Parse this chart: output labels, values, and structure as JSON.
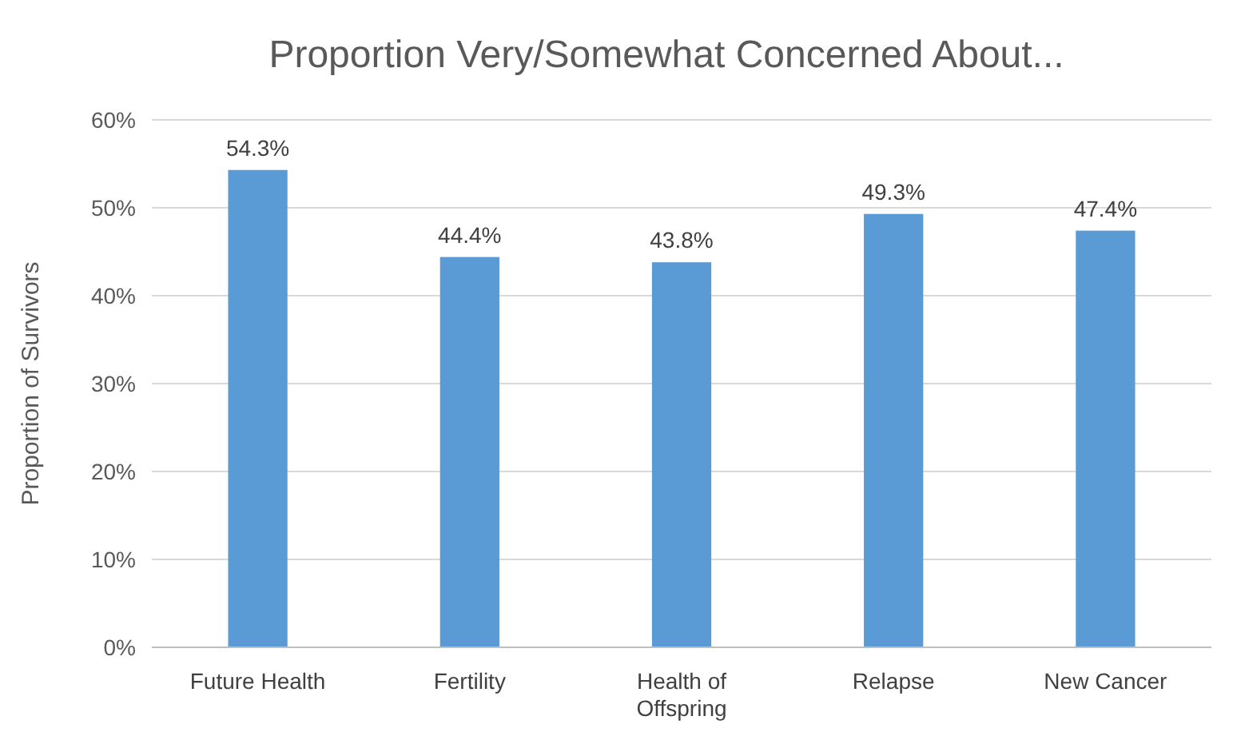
{
  "chart_data": {
    "type": "bar",
    "title": "Proportion Very/Somewhat Concerned About...",
    "ylabel": "Proportion of Survivors",
    "categories": [
      "Future Health",
      "Fertility",
      "Health of Offspring",
      "Relapse",
      "New Cancer"
    ],
    "values": [
      54.3,
      44.4,
      43.8,
      49.3,
      47.4
    ],
    "value_labels": [
      "54.3%",
      "44.4%",
      "43.8%",
      "49.3%",
      "47.4%"
    ],
    "color": "#5b9bd5",
    "ylim": [
      0,
      60
    ],
    "yticks": [
      {
        "value": 0,
        "label": "0%"
      },
      {
        "value": 10,
        "label": "10%"
      },
      {
        "value": 20,
        "label": "20%"
      },
      {
        "value": 30,
        "label": "30%"
      },
      {
        "value": 40,
        "label": "40%"
      },
      {
        "value": 50,
        "label": "50%"
      },
      {
        "value": 60,
        "label": "60%"
      }
    ],
    "grid": "y"
  }
}
